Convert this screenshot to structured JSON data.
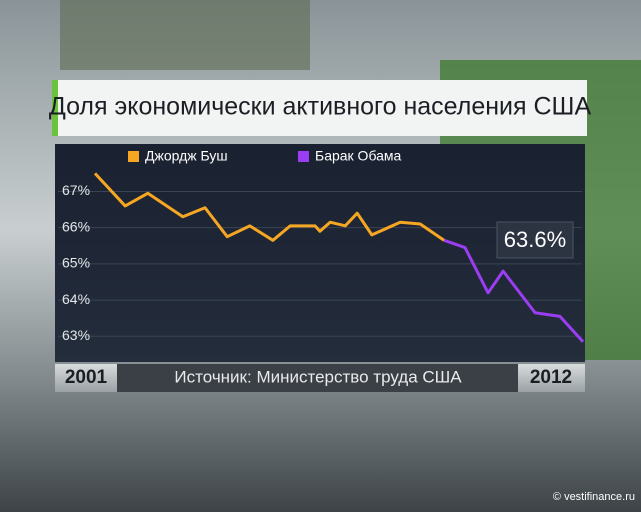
{
  "chart_data": {
    "type": "line",
    "title": "Доля экономически активного населения США",
    "source": "Источник: Министерство труда США",
    "credit": "© vestifinance.ru",
    "annotation": "63.6%",
    "x": [
      2001.0,
      2001.68,
      2002.19,
      2002.98,
      2003.48,
      2003.98,
      2004.49,
      2005.01,
      2005.4,
      2005.96,
      2006.07,
      2006.3,
      2006.64,
      2006.91,
      2007.24,
      2007.88,
      2008.33,
      2008.87,
      2009.34,
      2009.86,
      2010.2,
      2010.92,
      2011.48,
      2012.0
    ],
    "series": [
      {
        "name": "Джордж Буш",
        "color": "#f5a623",
        "values": [
          67.5,
          66.6,
          66.95,
          66.3,
          66.55,
          65.75,
          66.05,
          65.65,
          66.05,
          66.05,
          65.9,
          66.15,
          66.05,
          66.4,
          65.8,
          66.15,
          66.1,
          65.65,
          null,
          null,
          null,
          null,
          null,
          null
        ]
      },
      {
        "name": "Барак Обама",
        "color": "#9b3df2",
        "values": [
          null,
          null,
          null,
          null,
          null,
          null,
          null,
          null,
          null,
          null,
          null,
          null,
          null,
          null,
          null,
          null,
          null,
          65.65,
          65.45,
          64.2,
          64.8,
          63.65,
          63.55,
          62.85
        ]
      }
    ],
    "xlim": [
      2001,
      2012
    ],
    "xticks": [
      2001,
      2012
    ],
    "ylim": [
      62.4,
      68.2
    ],
    "yticks": [
      {
        "value": 63,
        "label": "63%"
      },
      {
        "value": 64,
        "label": "64%"
      },
      {
        "value": 65,
        "label": "65%"
      },
      {
        "value": 66,
        "label": "66%"
      },
      {
        "value": 67,
        "label": "67%"
      }
    ],
    "grid": true
  }
}
